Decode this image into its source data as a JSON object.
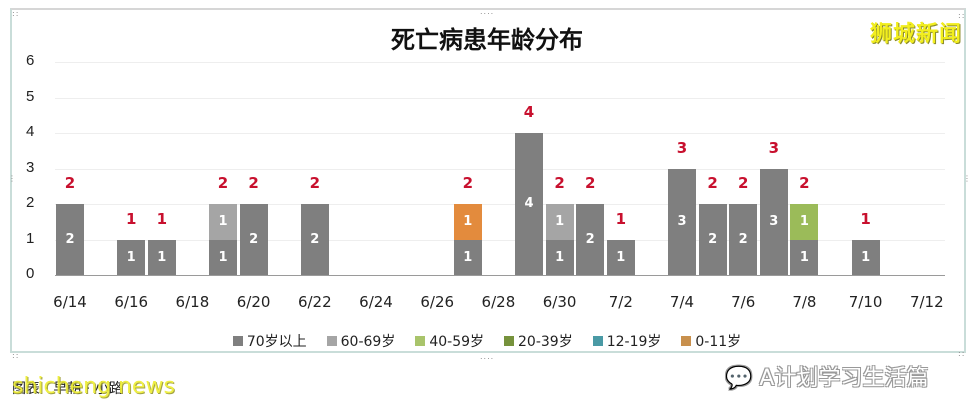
{
  "header": {
    "title": "死亡病患年龄分布",
    "brand": "狮城新闻"
  },
  "footer": {
    "caption": "图表 · 早朝 · 小路",
    "watermark_left": "shicheng news",
    "watermark_right": "A计划学习生活篇"
  },
  "colors": {
    "70+": "#7f7f7f",
    "60-69": "#a5a5a5",
    "40-59": "#9bbb59",
    "20-39": "#76923c",
    "12-19": "#4bacc6",
    "0-11": "#e38b3d",
    "total_label": "#c8102e"
  },
  "legend": [
    {
      "label": "70岁以上",
      "color": "#7f7f7f"
    },
    {
      "label": "60-69岁",
      "color": "#a5a5a5"
    },
    {
      "label": "40-59岁",
      "color": "#a9c46b"
    },
    {
      "label": "20-39岁",
      "color": "#76923c"
    },
    {
      "label": "12-19岁",
      "color": "#4a9aa5"
    },
    {
      "label": "0-11岁",
      "color": "#c8904d"
    }
  ],
  "chart_data": {
    "type": "bar",
    "stacked": true,
    "title": "死亡病患年龄分布",
    "xlabel": "",
    "ylabel": "",
    "ylim": [
      0,
      6
    ],
    "yticks": [
      0,
      1,
      2,
      3,
      4,
      5,
      6
    ],
    "xtick_labels": [
      "6/14",
      "6/16",
      "6/18",
      "6/20",
      "6/22",
      "6/24",
      "6/26",
      "6/28",
      "6/30",
      "7/2",
      "7/4",
      "7/6",
      "7/8",
      "7/10",
      "7/12"
    ],
    "legend_position": "bottom",
    "grid": true,
    "categories": [
      "6/14",
      "6/15",
      "6/16",
      "6/17",
      "6/18",
      "6/19",
      "6/20",
      "6/21",
      "6/22",
      "6/23",
      "6/24",
      "6/25",
      "6/26",
      "6/27",
      "6/28",
      "6/29",
      "6/30",
      "7/1",
      "7/2",
      "7/3",
      "7/4",
      "7/5",
      "7/6",
      "7/7",
      "7/8",
      "7/9",
      "7/10",
      "7/11",
      "7/12"
    ],
    "series": [
      {
        "name": "70岁以上",
        "values": [
          2,
          0,
          1,
          1,
          0,
          1,
          2,
          0,
          2,
          0,
          0,
          0,
          0,
          1,
          0,
          4,
          1,
          2,
          1,
          0,
          3,
          2,
          2,
          3,
          1,
          0,
          1,
          0,
          0
        ]
      },
      {
        "name": "60-69岁",
        "values": [
          0,
          0,
          0,
          0,
          0,
          1,
          0,
          0,
          0,
          0,
          0,
          0,
          0,
          0,
          0,
          0,
          1,
          0,
          0,
          0,
          0,
          0,
          0,
          0,
          0,
          0,
          0,
          0,
          0
        ]
      },
      {
        "name": "40-59岁",
        "values": [
          0,
          0,
          0,
          0,
          0,
          0,
          0,
          0,
          0,
          0,
          0,
          0,
          0,
          0,
          0,
          0,
          0,
          0,
          0,
          0,
          0,
          0,
          0,
          0,
          1,
          0,
          0,
          0,
          0
        ]
      },
      {
        "name": "20-39岁",
        "values": [
          0,
          0,
          0,
          0,
          0,
          0,
          0,
          0,
          0,
          0,
          0,
          0,
          0,
          0,
          0,
          0,
          0,
          0,
          0,
          0,
          0,
          0,
          0,
          0,
          0,
          0,
          0,
          0,
          0
        ]
      },
      {
        "name": "12-19岁",
        "values": [
          0,
          0,
          0,
          0,
          0,
          0,
          0,
          0,
          0,
          0,
          0,
          0,
          0,
          0,
          0,
          0,
          0,
          0,
          0,
          0,
          0,
          0,
          0,
          0,
          0,
          0,
          0,
          0,
          0
        ]
      },
      {
        "name": "0-11岁",
        "values": [
          0,
          0,
          0,
          0,
          0,
          0,
          0,
          0,
          0,
          0,
          0,
          0,
          0,
          1,
          0,
          0,
          0,
          0,
          0,
          0,
          0,
          0,
          0,
          0,
          0,
          0,
          0,
          0,
          0
        ]
      }
    ],
    "totals": [
      2,
      0,
      1,
      1,
      0,
      2,
      2,
      0,
      2,
      0,
      0,
      0,
      0,
      2,
      0,
      4,
      2,
      2,
      1,
      0,
      3,
      2,
      2,
      3,
      2,
      0,
      1,
      0,
      0
    ]
  }
}
